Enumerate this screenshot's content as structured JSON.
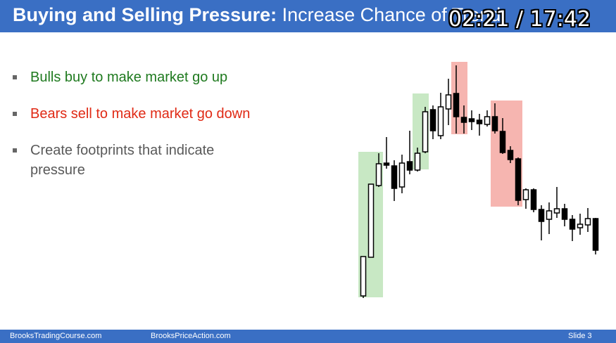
{
  "title": {
    "bold": "Buying and Selling Pressure:",
    "normal": "Increase Chance of Trend"
  },
  "video_timer": "02:21 / 17:42",
  "bullets": [
    {
      "text": "Bulls buy to make market go up",
      "color": "#1f7a1f"
    },
    {
      "text": "Bears sell to make market go down",
      "color": "#e02a15"
    },
    {
      "text": "Create footprints that indicate pressure",
      "color": "#595959"
    }
  ],
  "footer": {
    "left": "BrooksTradingCourse.com",
    "center": "BrooksPriceAction.com",
    "right": "Slide 3"
  },
  "colors": {
    "header_bg": "#3a6fc4",
    "bull_highlight": "#c8e8c4",
    "bear_highlight": "#f6b5b0"
  }
}
